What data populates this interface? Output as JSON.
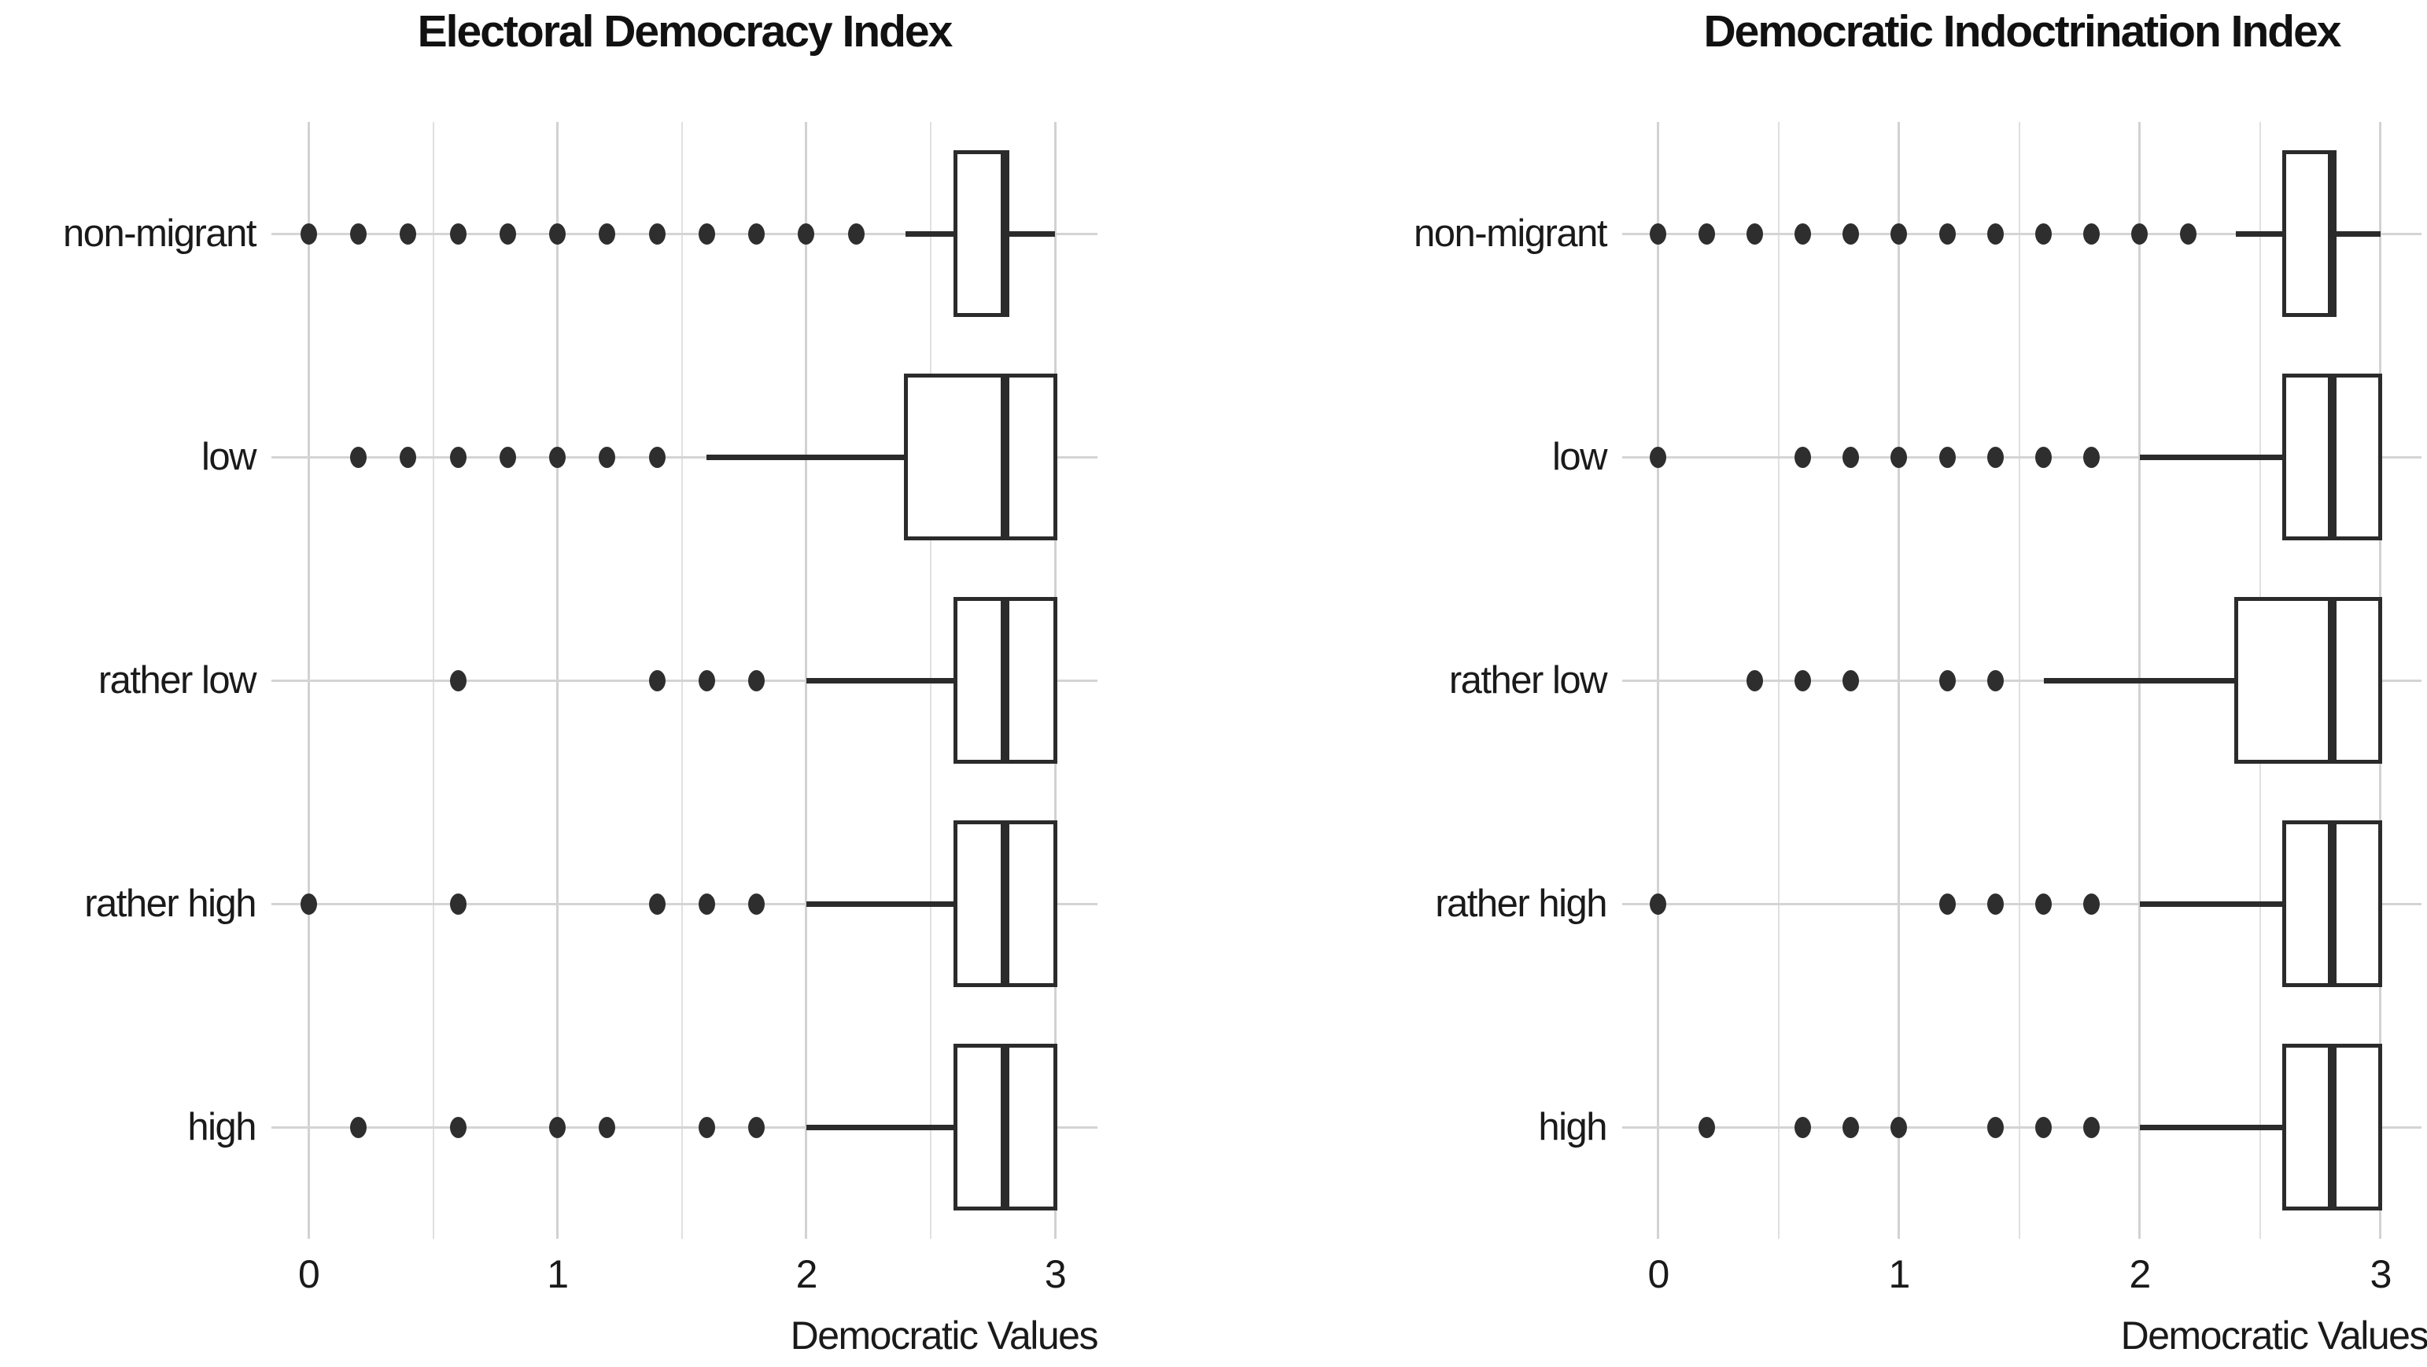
{
  "colors": {
    "background": "#ffffff",
    "text": "#1a1a1a",
    "title_text": "#111111",
    "box_line": "#2b2b2b",
    "outlier_dot": "#2e2e2e",
    "grid_major": "#d2d2d2",
    "grid_minor": "#e0e0e0",
    "row_line": "#d4d4d4"
  },
  "chart_data": [
    {
      "type": "boxplot",
      "orientation": "horizontal",
      "title": "Electoral Democracy Index",
      "xlabel": "Democratic Values",
      "xlim": [
        0,
        3
      ],
      "x_ticks": [
        "0",
        "1",
        "2",
        "3"
      ],
      "grid": "vertical major at integers, minor at halves",
      "legend": "none",
      "categories": [
        "non-migrant",
        "low",
        "rather low",
        "rather high",
        "high"
      ],
      "boxes": [
        {
          "category": "non-migrant",
          "whisker_low": 2.4,
          "q1": 2.6,
          "median": 2.8,
          "q3": 2.8,
          "whisker_high": 3.0,
          "outliers": [
            0,
            0.2,
            0.4,
            0.6,
            0.8,
            1.0,
            1.2,
            1.4,
            1.6,
            1.8,
            2.0,
            2.2
          ]
        },
        {
          "category": "low",
          "whisker_low": 1.6,
          "q1": 2.4,
          "median": 2.8,
          "q3": 3.0,
          "whisker_high": 3.0,
          "outliers": [
            0.2,
            0.4,
            0.6,
            0.8,
            1.0,
            1.2,
            1.4
          ]
        },
        {
          "category": "rather low",
          "whisker_low": 2.0,
          "q1": 2.6,
          "median": 2.8,
          "q3": 3.0,
          "whisker_high": 3.0,
          "outliers": [
            0.6,
            1.4,
            1.6,
            1.8
          ]
        },
        {
          "category": "rather high",
          "whisker_low": 2.0,
          "q1": 2.6,
          "median": 2.8,
          "q3": 3.0,
          "whisker_high": 3.0,
          "outliers": [
            0,
            0.6,
            1.4,
            1.6,
            1.8
          ]
        },
        {
          "category": "high",
          "whisker_low": 2.0,
          "q1": 2.6,
          "median": 2.8,
          "q3": 3.0,
          "whisker_high": 3.0,
          "outliers": [
            0.2,
            0.6,
            1.0,
            1.2,
            1.6,
            1.8
          ]
        }
      ]
    },
    {
      "type": "boxplot",
      "orientation": "horizontal",
      "title": "Democratic Indoctrination Index",
      "xlabel": "Democratic Values",
      "xlim": [
        0,
        3
      ],
      "x_ticks": [
        "0",
        "1",
        "2",
        "3"
      ],
      "grid": "vertical major at integers, minor at halves",
      "legend": "none",
      "categories": [
        "non-migrant",
        "low",
        "rather low",
        "rather high",
        "high"
      ],
      "boxes": [
        {
          "category": "non-migrant",
          "whisker_low": 2.4,
          "q1": 2.6,
          "median": 2.8,
          "q3": 2.8,
          "whisker_high": 3.0,
          "outliers": [
            0,
            0.2,
            0.4,
            0.6,
            0.8,
            1.0,
            1.2,
            1.4,
            1.6,
            1.8,
            2.0,
            2.2
          ]
        },
        {
          "category": "low",
          "whisker_low": 2.0,
          "q1": 2.6,
          "median": 2.8,
          "q3": 3.0,
          "whisker_high": 3.0,
          "outliers": [
            0,
            0.6,
            0.8,
            1.0,
            1.2,
            1.4,
            1.6,
            1.8
          ]
        },
        {
          "category": "rather low",
          "whisker_low": 1.6,
          "q1": 2.4,
          "median": 2.8,
          "q3": 3.0,
          "whisker_high": 3.0,
          "outliers": [
            0.4,
            0.6,
            0.8,
            1.2,
            1.4
          ]
        },
        {
          "category": "rather high",
          "whisker_low": 2.0,
          "q1": 2.6,
          "median": 2.8,
          "q3": 3.0,
          "whisker_high": 3.0,
          "outliers": [
            0,
            1.2,
            1.4,
            1.6,
            1.8
          ]
        },
        {
          "category": "high",
          "whisker_low": 2.0,
          "q1": 2.6,
          "median": 2.8,
          "q3": 3.0,
          "whisker_high": 3.0,
          "outliers": [
            0.2,
            0.6,
            0.8,
            1.0,
            1.4,
            1.6,
            1.8
          ]
        }
      ]
    }
  ]
}
